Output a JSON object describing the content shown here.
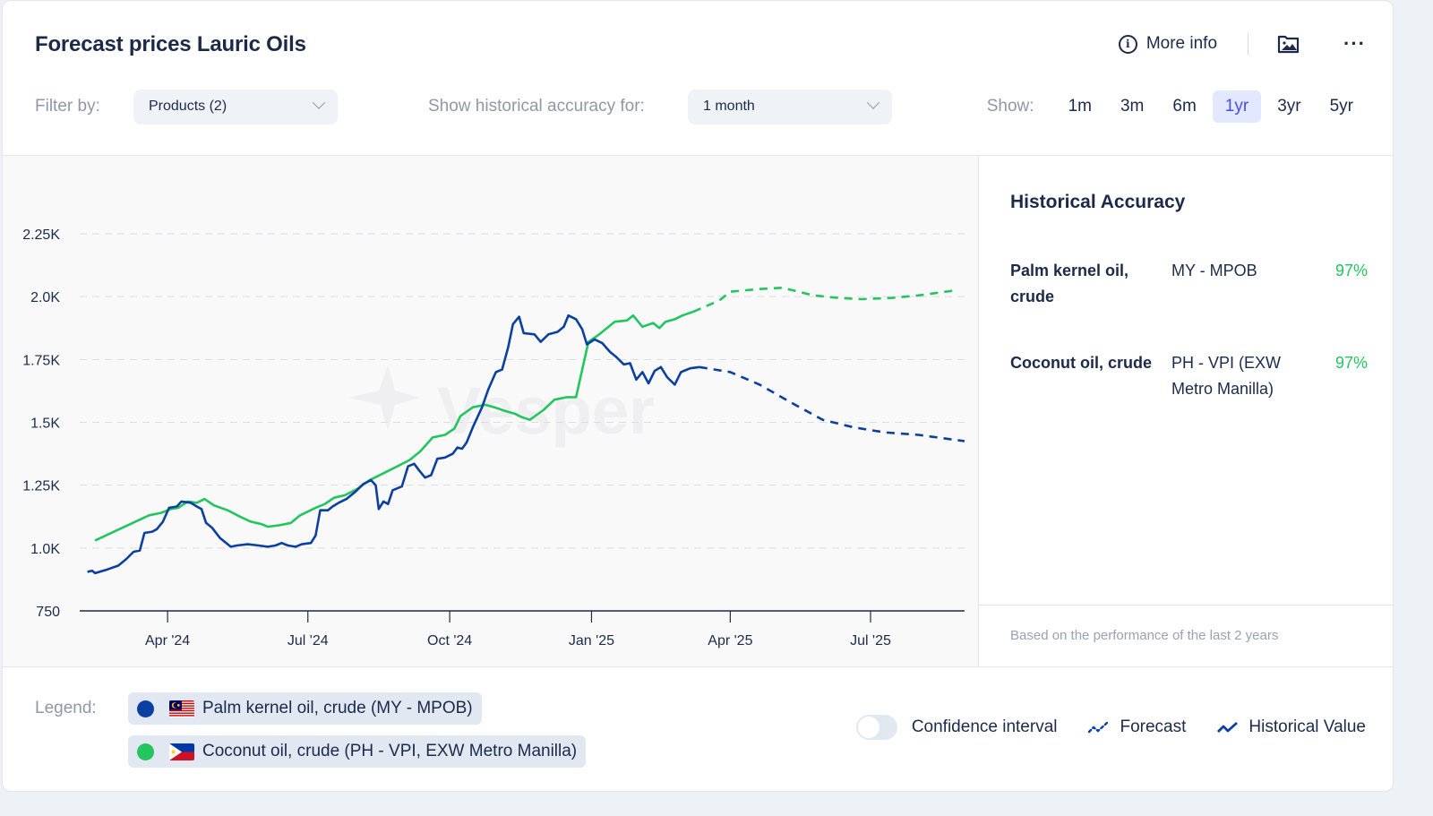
{
  "header": {
    "title": "Forecast prices Lauric Oils",
    "more_info_label": "More info",
    "icons": {
      "info": "info-circle-icon",
      "image": "image-folder-icon",
      "more": "ellipsis-icon"
    }
  },
  "filters": {
    "filter_by_label": "Filter by:",
    "products_select": "Products (2)",
    "historical_accuracy_label": "Show historical accuracy for:",
    "accuracy_select": "1 month",
    "show_label": "Show:",
    "ranges": [
      {
        "label": "1m",
        "active": false
      },
      {
        "label": "3m",
        "active": false
      },
      {
        "label": "6m",
        "active": false
      },
      {
        "label": "1yr",
        "active": true
      },
      {
        "label": "3yr",
        "active": false
      },
      {
        "label": "5yr",
        "active": false
      }
    ]
  },
  "watermark": "Vesper",
  "historical_accuracy": {
    "title": "Historical Accuracy",
    "rows": [
      {
        "product": "Palm kernel oil, crude",
        "source": "MY - MPOB",
        "accuracy": "97%"
      },
      {
        "product": "Coconut oil, crude",
        "source": "PH - VPI (EXW Metro Manilla)",
        "accuracy": "97%"
      }
    ],
    "footer": "Based on the performance of the last 2 years"
  },
  "legend": {
    "label": "Legend:",
    "series": [
      {
        "name": "Palm kernel oil, crude (MY - MPOB)",
        "color": "#0b3fa0",
        "flag": "MY"
      },
      {
        "name": "Coconut oil, crude (PH - VPI, EXW Metro Manilla)",
        "color": "#22c55e",
        "flag": "PH"
      }
    ],
    "confidence_interval_label": "Confidence interval",
    "confidence_interval_on": false,
    "forecast_label": "Forecast",
    "historical_label": "Historical Value"
  },
  "chart_data": {
    "type": "line",
    "title": "Forecast prices Lauric Oils",
    "xlabel": "",
    "ylabel": "",
    "ylim": [
      750,
      2250
    ],
    "yticks": [
      750,
      1000,
      1250,
      1500,
      1750,
      2000,
      2250
    ],
    "ytick_labels": [
      "750",
      "1.0K",
      "1.25K",
      "1.5K",
      "1.75K",
      "2.0K",
      "2.25K"
    ],
    "xlim": [
      "2024-02-04",
      "2025-08-31"
    ],
    "xticks": [
      "2024-04-01",
      "2024-07-01",
      "2024-10-01",
      "2025-01-01",
      "2025-04-01",
      "2025-07-01"
    ],
    "xtick_labels": [
      "Apr '24",
      "Jul '24",
      "Oct '24",
      "Jan '25",
      "Apr '25",
      "Jul '25"
    ],
    "grid": true,
    "series": [
      {
        "name": "Palm kernel oil, crude (MY - MPOB)",
        "color": "#0b3fa0",
        "historical": [
          [
            "2024-02-09",
            905
          ],
          [
            "2024-02-12",
            910
          ],
          [
            "2024-02-14",
            900
          ],
          [
            "2024-02-22",
            915
          ],
          [
            "2024-02-29",
            930
          ],
          [
            "2024-03-05",
            955
          ],
          [
            "2024-03-10",
            985
          ],
          [
            "2024-03-14",
            990
          ],
          [
            "2024-03-17",
            1060
          ],
          [
            "2024-03-22",
            1065
          ],
          [
            "2024-03-25",
            1075
          ],
          [
            "2024-03-29",
            1105
          ],
          [
            "2024-04-02",
            1160
          ],
          [
            "2024-04-07",
            1165
          ],
          [
            "2024-04-10",
            1185
          ],
          [
            "2024-04-16",
            1180
          ],
          [
            "2024-04-20",
            1165
          ],
          [
            "2024-04-23",
            1155
          ],
          [
            "2024-04-26",
            1100
          ],
          [
            "2024-04-30",
            1080
          ],
          [
            "2024-05-05",
            1040
          ],
          [
            "2024-05-12",
            1005
          ],
          [
            "2024-05-16",
            1010
          ],
          [
            "2024-05-23",
            1015
          ],
          [
            "2024-05-30",
            1010
          ],
          [
            "2024-06-05",
            1005
          ],
          [
            "2024-06-10",
            1010
          ],
          [
            "2024-06-14",
            1020
          ],
          [
            "2024-06-18",
            1010
          ],
          [
            "2024-06-23",
            1005
          ],
          [
            "2024-06-27",
            1015
          ],
          [
            "2024-07-03",
            1020
          ],
          [
            "2024-07-06",
            1050
          ],
          [
            "2024-07-09",
            1150
          ],
          [
            "2024-07-14",
            1150
          ],
          [
            "2024-07-17",
            1165
          ],
          [
            "2024-07-21",
            1180
          ],
          [
            "2024-07-26",
            1195
          ],
          [
            "2024-08-01",
            1225
          ],
          [
            "2024-08-06",
            1255
          ],
          [
            "2024-08-11",
            1270
          ],
          [
            "2024-08-14",
            1250
          ],
          [
            "2024-08-16",
            1155
          ],
          [
            "2024-08-19",
            1185
          ],
          [
            "2024-08-22",
            1175
          ],
          [
            "2024-08-25",
            1230
          ],
          [
            "2024-08-31",
            1245
          ],
          [
            "2024-09-04",
            1325
          ],
          [
            "2024-09-08",
            1335
          ],
          [
            "2024-09-11",
            1310
          ],
          [
            "2024-09-15",
            1280
          ],
          [
            "2024-09-19",
            1290
          ],
          [
            "2024-09-23",
            1355
          ],
          [
            "2024-09-28",
            1360
          ],
          [
            "2024-10-03",
            1375
          ],
          [
            "2024-10-06",
            1400
          ],
          [
            "2024-10-09",
            1395
          ],
          [
            "2024-10-12",
            1420
          ],
          [
            "2024-10-16",
            1480
          ],
          [
            "2024-10-22",
            1560
          ],
          [
            "2024-10-26",
            1630
          ],
          [
            "2024-10-31",
            1700
          ],
          [
            "2024-11-04",
            1710
          ],
          [
            "2024-11-08",
            1800
          ],
          [
            "2024-11-11",
            1890
          ],
          [
            "2024-11-15",
            1920
          ],
          [
            "2024-11-18",
            1855
          ],
          [
            "2024-11-25",
            1850
          ],
          [
            "2024-11-29",
            1820
          ],
          [
            "2024-12-04",
            1850
          ],
          [
            "2024-12-10",
            1860
          ],
          [
            "2024-12-14",
            1880
          ],
          [
            "2024-12-17",
            1925
          ],
          [
            "2024-12-22",
            1910
          ],
          [
            "2024-12-26",
            1870
          ],
          [
            "2024-12-29",
            1810
          ],
          [
            "2025-01-03",
            1830
          ],
          [
            "2025-01-08",
            1815
          ],
          [
            "2025-01-13",
            1780
          ],
          [
            "2025-01-17",
            1760
          ],
          [
            "2025-01-22",
            1730
          ],
          [
            "2025-01-26",
            1735
          ],
          [
            "2025-01-30",
            1670
          ],
          [
            "2025-02-03",
            1700
          ],
          [
            "2025-02-07",
            1655
          ],
          [
            "2025-02-11",
            1705
          ],
          [
            "2025-02-15",
            1720
          ],
          [
            "2025-02-19",
            1680
          ],
          [
            "2025-02-24",
            1650
          ],
          [
            "2025-02-28",
            1700
          ],
          [
            "2025-03-06",
            1715
          ],
          [
            "2025-03-12",
            1720
          ]
        ],
        "forecast": [
          [
            "2025-03-12",
            1720
          ],
          [
            "2025-04-01",
            1700
          ],
          [
            "2025-04-20",
            1650
          ],
          [
            "2025-05-10",
            1580
          ],
          [
            "2025-05-31",
            1510
          ],
          [
            "2025-06-20",
            1480
          ],
          [
            "2025-07-10",
            1460
          ],
          [
            "2025-08-01",
            1450
          ],
          [
            "2025-08-31",
            1425
          ]
        ]
      },
      {
        "name": "Coconut oil, crude (PH - VPI, EXW Metro Manilla)",
        "color": "#22c55e",
        "historical": [
          [
            "2024-02-14",
            1030
          ],
          [
            "2024-03-20",
            1130
          ],
          [
            "2024-03-28",
            1140
          ],
          [
            "2024-04-03",
            1155
          ],
          [
            "2024-04-08",
            1160
          ],
          [
            "2024-04-14",
            1185
          ],
          [
            "2024-04-20",
            1180
          ],
          [
            "2024-04-25",
            1195
          ],
          [
            "2024-05-01",
            1170
          ],
          [
            "2024-05-10",
            1150
          ],
          [
            "2024-05-18",
            1125
          ],
          [
            "2024-05-25",
            1105
          ],
          [
            "2024-06-01",
            1095
          ],
          [
            "2024-06-05",
            1085
          ],
          [
            "2024-06-12",
            1090
          ],
          [
            "2024-06-20",
            1100
          ],
          [
            "2024-06-26",
            1130
          ],
          [
            "2024-07-06",
            1160
          ],
          [
            "2024-07-12",
            1175
          ],
          [
            "2024-07-18",
            1200
          ],
          [
            "2024-07-25",
            1210
          ],
          [
            "2024-08-02",
            1235
          ],
          [
            "2024-08-10",
            1270
          ],
          [
            "2024-08-20",
            1300
          ],
          [
            "2024-08-28",
            1325
          ],
          [
            "2024-09-05",
            1350
          ],
          [
            "2024-09-12",
            1385
          ],
          [
            "2024-09-20",
            1440
          ],
          [
            "2024-09-28",
            1450
          ],
          [
            "2024-10-04",
            1475
          ],
          [
            "2024-10-08",
            1525
          ],
          [
            "2024-10-16",
            1560
          ],
          [
            "2024-10-24",
            1570
          ],
          [
            "2024-10-30",
            1560
          ],
          [
            "2024-11-06",
            1545
          ],
          [
            "2024-11-12",
            1535
          ],
          [
            "2024-11-17",
            1520
          ],
          [
            "2024-11-22",
            1510
          ],
          [
            "2024-12-01",
            1550
          ],
          [
            "2024-12-08",
            1590
          ],
          [
            "2024-12-16",
            1600
          ],
          [
            "2024-12-22",
            1600
          ],
          [
            "2024-12-30",
            1820
          ],
          [
            "2025-01-06",
            1850
          ],
          [
            "2025-01-16",
            1900
          ],
          [
            "2025-01-24",
            1905
          ],
          [
            "2025-01-28",
            1925
          ],
          [
            "2025-02-03",
            1880
          ],
          [
            "2025-02-10",
            1895
          ],
          [
            "2025-02-14",
            1875
          ],
          [
            "2025-02-18",
            1900
          ],
          [
            "2025-02-24",
            1910
          ],
          [
            "2025-03-01",
            1925
          ],
          [
            "2025-03-08",
            1940
          ]
        ],
        "forecast": [
          [
            "2025-03-08",
            1940
          ],
          [
            "2025-03-25",
            1985
          ],
          [
            "2025-04-01",
            2020
          ],
          [
            "2025-04-20",
            2030
          ],
          [
            "2025-05-05",
            2035
          ],
          [
            "2025-05-25",
            2005
          ],
          [
            "2025-06-10",
            1995
          ],
          [
            "2025-06-25",
            1990
          ],
          [
            "2025-07-15",
            1995
          ],
          [
            "2025-08-01",
            2005
          ],
          [
            "2025-08-25",
            2025
          ]
        ]
      }
    ]
  }
}
